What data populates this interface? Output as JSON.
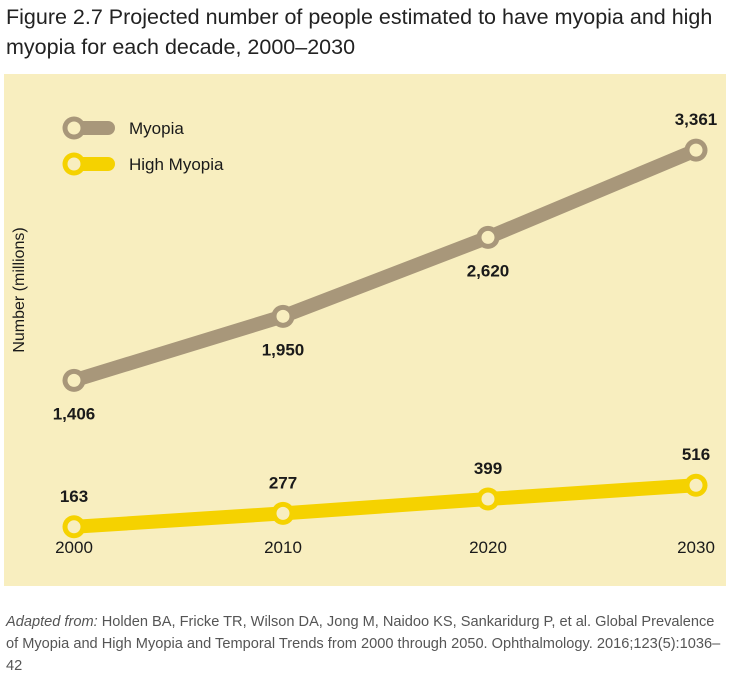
{
  "figure_title": "Figure 2.7 Projected number of people estimated to have myopia and high myopia for each decade, 2000–2030",
  "source": {
    "prefix": "Adapted from:",
    "text": " Holden BA, Fricke TR, Wilson DA, Jong M, Naidoo KS, Sankaridurg P, et al. Global Prevalence of Myopia and High Myopia and Temporal Trends from 2000 through 2050. Ophthalmology. 2016;123(5):1036–42"
  },
  "colors": {
    "panel_background": "#f8eebf",
    "myopia": "#a8977a",
    "high_myopia": "#f5d200"
  },
  "chart_data": {
    "type": "line",
    "title": "Figure 2.7 Projected number of people estimated to have myopia and high myopia for each decade, 2000–2030",
    "xlabel": "",
    "ylabel": "Number (millions)",
    "x": [
      "2000",
      "2010",
      "2020",
      "2030"
    ],
    "ylim": [
      0,
      3600
    ],
    "grid": false,
    "legend_position": "top-left",
    "series": [
      {
        "name": "Myopia",
        "color": "#a8977a",
        "values": [
          1406,
          1950,
          2620,
          3361
        ],
        "labels": [
          "1,406",
          "1,950",
          "2,620",
          "3,361"
        ]
      },
      {
        "name": "High Myopia",
        "color": "#f5d200",
        "values": [
          163,
          277,
          399,
          516
        ],
        "labels": [
          "163",
          "277",
          "399",
          "516"
        ]
      }
    ]
  }
}
